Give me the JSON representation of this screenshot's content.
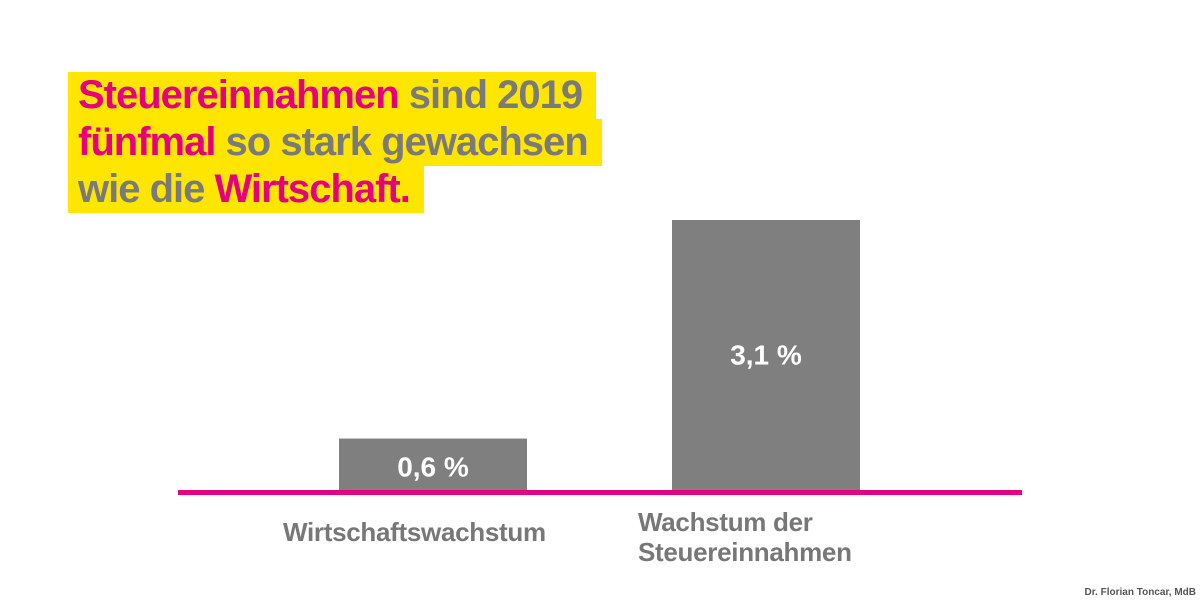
{
  "headline": {
    "line1": {
      "accent": "Steuereinnahmen",
      "rest": " sind 2019"
    },
    "line2": {
      "accent": "fünfmal",
      "rest": " so stark gewachsen"
    },
    "line3": {
      "plain": "wie die ",
      "accent": "Wirtschaft",
      "end": "."
    }
  },
  "colors": {
    "bar": "#7f7f7f",
    "axis": "#e5007d",
    "highlight": "#ffe600",
    "accent_text": "#e5007d",
    "grey_text": "#777777",
    "bar_label": "#ffffff"
  },
  "chart_data": {
    "type": "bar",
    "title": "Steuereinnahmen sind 2019 fünfmal so stark gewachsen wie die Wirtschaft.",
    "xlabel": "",
    "ylabel": "",
    "categories": [
      "Wirtschaftswachstum",
      "Wachstum der Steuereinnahmen"
    ],
    "category_lines": [
      [
        "Wirtschaftswachstum"
      ],
      [
        "Wachstum der",
        "Steuereinnahmen"
      ]
    ],
    "values": [
      0.6,
      3.1
    ],
    "value_labels": [
      "0,6 %",
      "3,1 %"
    ],
    "unit": "%",
    "ylim": [
      0,
      3.1
    ],
    "grid": false,
    "legend": "none"
  },
  "credit": "Dr. Florian Toncar, MdB"
}
